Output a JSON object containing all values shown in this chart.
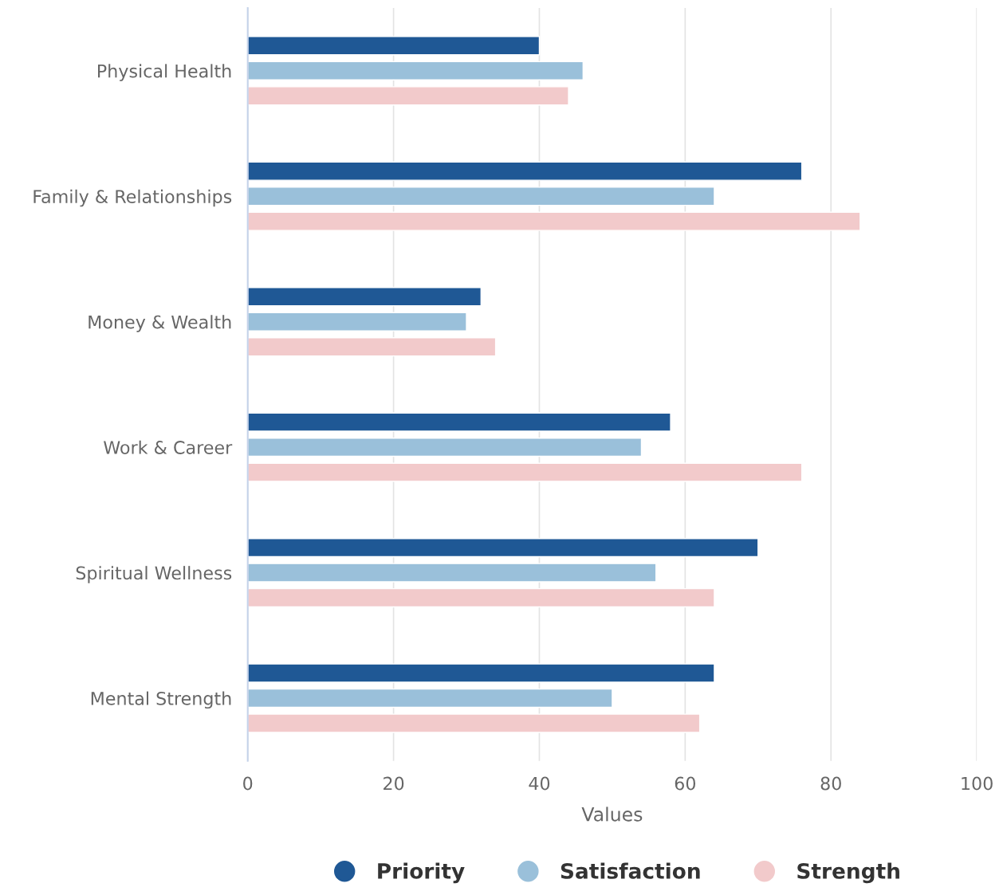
{
  "chart_data": {
    "type": "bar",
    "orientation": "horizontal",
    "xlabel": "Values",
    "categories": [
      "Physical Health",
      "Family & Relationships",
      "Money & Wealth",
      "Work & Career",
      "Spiritual Wellness",
      "Mental Strength"
    ],
    "series": [
      {
        "name": "Priority",
        "color": "#1f5895",
        "values": [
          40,
          76,
          32,
          58,
          70,
          64
        ]
      },
      {
        "name": "Satisfaction",
        "color": "#9ac0da",
        "values": [
          46,
          64,
          30,
          54,
          56,
          50
        ]
      },
      {
        "name": "Strength",
        "color": "#f2cacb",
        "values": [
          44,
          84,
          34,
          76,
          64,
          62
        ]
      }
    ],
    "xlim": [
      0,
      100
    ],
    "xticks": [
      0,
      20,
      40,
      60,
      80,
      100
    ],
    "grid": "x",
    "legend": "bottom"
  }
}
